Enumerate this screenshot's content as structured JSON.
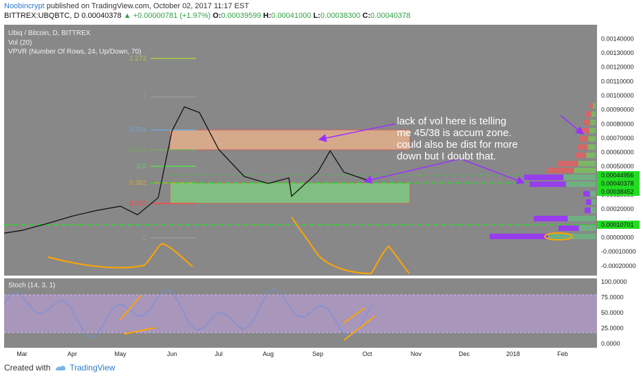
{
  "header": {
    "author": "Noobincrypt",
    "published_text": "published on TradingView.com, October 02, 2017 11:17 EST",
    "symbol": "BITTREX:UBQBTC, D",
    "price": "0.00040378",
    "change": "+0.00000781 (+1.97%)",
    "o_label": "O:",
    "o_value": "0.00039599",
    "h_label": "H:",
    "h_value": "0.00041000",
    "l_label": "L:",
    "l_value": "0.00038300",
    "c_label": "C:",
    "c_value": "0.00040378"
  },
  "legend": {
    "line1": "Ubiq / Bitcoin, D, BITTREX",
    "line2": "Vol (20)",
    "line3": "VPVR (Number Of Rows, 24, Up/Down, 70)"
  },
  "annotation": {
    "lines": [
      "lack of vol here is telling",
      "me 45/38 is accum zone.",
      "could also be dist for more",
      "down but I doubt that."
    ]
  },
  "fib_labels": [
    "1.272",
    "1",
    "0.764",
    "0.618",
    "0.5",
    "0.382",
    "0.236",
    "0"
  ],
  "price_badges": [
    "0.00044956",
    "0.00040378",
    "0.00038452",
    "0.00010701"
  ],
  "stoch_label": "Stoch (14, 3, 1)",
  "footer": {
    "created_with": "Created with",
    "brand": "TradingView"
  },
  "colors": {
    "fib_zone": "#f0b48c",
    "support_zone": "#7fd07f",
    "annotation": "#ffffff",
    "arrow": "#9b30ff",
    "orange": "#ffa500",
    "badge_green": "#22dd22",
    "stoch_band": "#c3a3e6"
  },
  "chart_data": [
    {
      "type": "line",
      "title": "Ubiq / Bitcoin, D, BITTREX",
      "y_ticks": [
        "0.00140000",
        "0.00130000",
        "0.00120000",
        "0.00110000",
        "0.00100000",
        "0.00090000",
        "0.00080000",
        "0.00070000",
        "0.00060000",
        "0.00050000",
        "0.00040000",
        "0.00030000",
        "0.00020000",
        "0.00010000",
        "0.00000000",
        "-0.00010000",
        "-0.00020000"
      ],
      "ylim": [
        -0.00023,
        0.00146
      ],
      "x_ticks": [
        "Mar",
        "Apr",
        "May",
        "Jun",
        "Jul",
        "Aug",
        "Sep",
        "Oct",
        "Nov",
        "Dec",
        "2018",
        "Feb"
      ],
      "series": [
        {
          "x": [
            "Feb 15",
            "Mar 01",
            "Mar 15",
            "Apr 01",
            "Apr 15",
            "May 01",
            "May 15",
            "May 25",
            "Jun 01",
            "Jun 10",
            "Jun 20",
            "Jul 01",
            "Jul 15",
            "Aug 01",
            "Aug 10",
            "Aug 20",
            "Aug 30",
            "Sep 10",
            "Sep 20",
            "Oct 02"
          ],
          "values": [
            3e-05,
            5e-05,
            0.0001,
            0.00015,
            0.00019,
            0.00022,
            0.00016,
            0.00028,
            0.00075,
            0.00092,
            0.00088,
            0.00062,
            0.00043,
            0.00038,
            0.00042,
            0.00029,
            0.00046,
            0.00061,
            0.00046,
            0.000404
          ]
        }
      ],
      "zones": [
        {
          "from": 0.00061,
          "to": 0.00074,
          "color": "#f0b48c"
        },
        {
          "from": 0.00025,
          "to": 0.00038,
          "color": "#7fd07f"
        }
      ],
      "hlines": [
        0.00040378,
        0.00010701
      ]
    },
    {
      "type": "line",
      "title": "Stoch (14, 3, 1)",
      "y_ticks": [
        "100.0000",
        "75.0000",
        "50.0000",
        "25.0000",
        "0.0000"
      ],
      "ylim": [
        0,
        100
      ],
      "band": [
        20,
        80
      ]
    }
  ]
}
